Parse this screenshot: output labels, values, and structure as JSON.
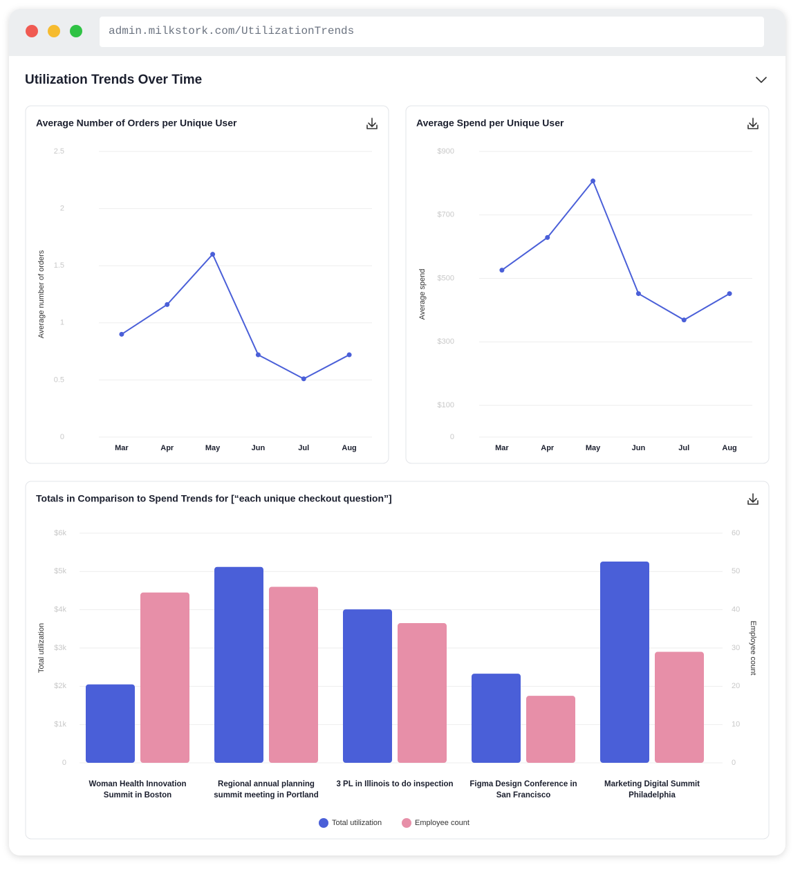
{
  "browser": {
    "url": "admin.milkstork.com/UtilizationTrends"
  },
  "section": {
    "title": "Utilization Trends Over Time"
  },
  "chart_data": [
    {
      "type": "line",
      "title": "Average Number of Orders per Unique User",
      "categories": [
        "Mar",
        "Apr",
        "May",
        "Jun",
        "Jul",
        "Aug"
      ],
      "values": [
        0.9,
        1.16,
        1.6,
        0.72,
        0.51,
        0.72
      ],
      "color": "#4a5fd8",
      "ylabel": "Average number of orders",
      "ylim": [
        0,
        2.5
      ],
      "yticks": [
        0,
        0.5,
        1,
        1.5,
        2,
        2.5
      ],
      "grid": true
    },
    {
      "type": "line",
      "title": "Average Spend per Unique User",
      "categories": [
        "Mar",
        "Apr",
        "May",
        "Jun",
        "Jul",
        "Aug"
      ],
      "values": [
        526,
        629,
        807,
        452,
        369,
        452
      ],
      "color": "#4a5fd8",
      "ylabel": "Average spend",
      "ylim": [
        0,
        900
      ],
      "yticks": [
        0,
        {
          "value": 100,
          "label": "$100"
        },
        {
          "value": 300,
          "label": "$300"
        },
        {
          "value": 500,
          "label": "$500"
        },
        {
          "value": 700,
          "label": "$700"
        },
        {
          "value": 900,
          "label": "$900"
        }
      ],
      "grid": true
    },
    {
      "type": "bar",
      "title": "Totals in Comparison to Spend Trends for [“each unique checkout question”]",
      "categories": [
        "Woman Health Innovation Summit in Boston",
        "Regional annual planning summit meeting in Portland",
        "3 PL in Illinois to do inspection",
        "Figma Design Conference in San Francisco",
        "Marketing Digital Summit Philadelphia"
      ],
      "ylabel": "Total  utilization",
      "y2label": "Employee count",
      "series": [
        {
          "name": "Total  utilization",
          "color": "#4a5fd8",
          "values": [
            2050,
            5120,
            4010,
            2330,
            5260
          ]
        },
        {
          "name": "Employee count",
          "color": "#e78fa8",
          "axis": "y2",
          "values": [
            44.5,
            46,
            36.5,
            17.5,
            29
          ]
        }
      ],
      "ylim": [
        0,
        6000
      ],
      "yticks": [
        0,
        {
          "value": 1000,
          "label": "$1k"
        },
        {
          "value": 2000,
          "label": "$2k"
        },
        {
          "value": 3000,
          "label": "$3k"
        },
        {
          "value": 4000,
          "label": "$4k"
        },
        {
          "value": 5000,
          "label": "$5k"
        },
        {
          "value": 6000,
          "label": "$6k"
        }
      ],
      "y2lim": [
        0,
        60
      ],
      "y2ticks": [
        0,
        10,
        20,
        30,
        40,
        50,
        60
      ],
      "grid": true,
      "legend": "bottom"
    }
  ]
}
